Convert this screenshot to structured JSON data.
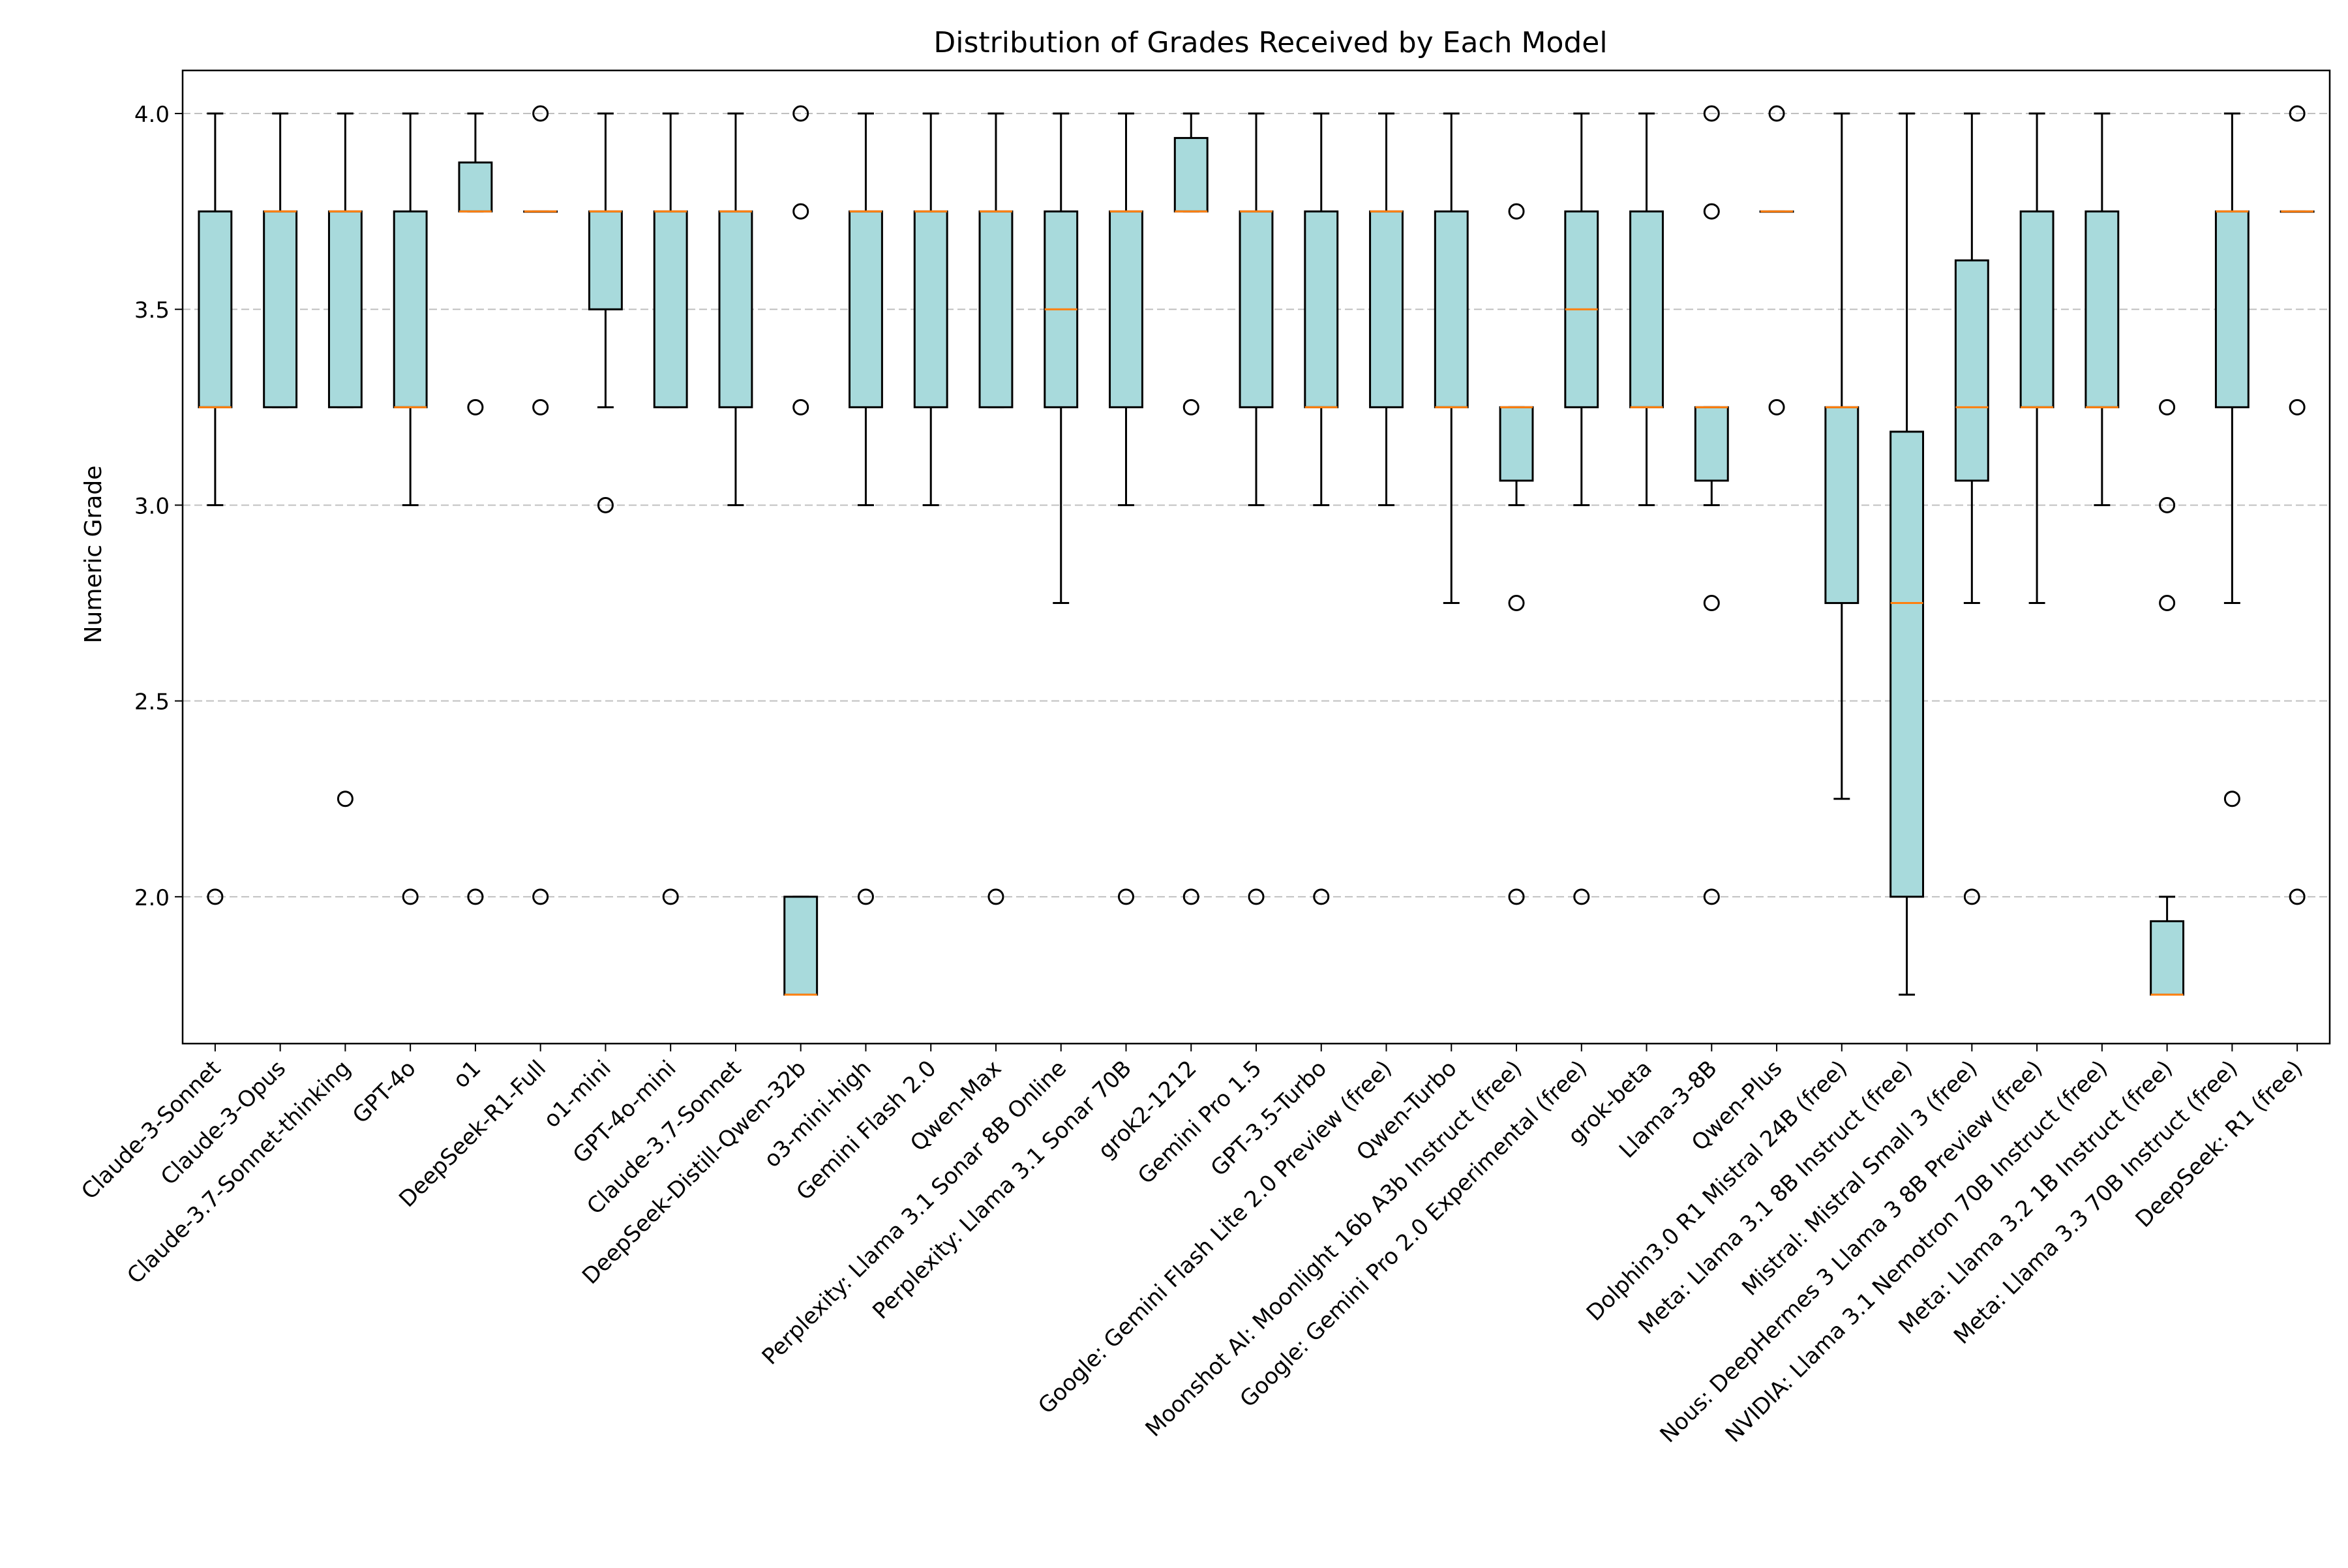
{
  "chart_data": {
    "type": "box",
    "title": "Distribution of Grades Received by Each Model",
    "xlabel": "",
    "ylabel": "Numeric Grade",
    "ylim": [
      1.625,
      4.11
    ],
    "yticks": [
      2.0,
      2.5,
      3.0,
      3.5,
      4.0
    ],
    "ytick_labels": [
      "2.0",
      "2.5",
      "3.0",
      "3.5",
      "4.0"
    ],
    "grid": "y-dashed",
    "colors": {
      "box_fill": "#a8dadc",
      "median": "#ff7f0e",
      "grid": "#c0c0c0",
      "edge": "#000000"
    },
    "categories": [
      "Claude-3-Sonnet",
      "Claude-3-Opus",
      "Claude-3.7-Sonnet-thinking",
      "GPT-4o",
      "o1",
      "DeepSeek-R1-Full",
      "o1-mini",
      "GPT-4o-mini",
      "Claude-3.7-Sonnet",
      "DeepSeek-Distill-Qwen-32b",
      "o3-mini-high",
      "Gemini Flash 2.0",
      "Qwen-Max",
      "Perplexity: Llama 3.1 Sonar 8B Online",
      "Perplexity: Llama 3.1 Sonar 70B",
      "grok2-1212",
      "Gemini Pro 1.5",
      "GPT-3.5-Turbo",
      "Google: Gemini Flash Lite 2.0 Preview (free)",
      "Qwen-Turbo",
      "Moonshot AI: Moonlight 16b A3b Instruct (free)",
      "Google: Gemini Pro 2.0 Experimental (free)",
      "grok-beta",
      "Llama-3-8B",
      "Qwen-Plus",
      "Dolphin3.0 R1 Mistral 24B (free)",
      "Meta: Llama 3.1 8B Instruct (free)",
      "Mistral: Mistral Small 3 (free)",
      "Nous: DeepHermes 3 Llama 3 8B Preview (free)",
      "NVIDIA: Llama 3.1 Nemotron 70B Instruct (free)",
      "Meta: Llama 3.2 1B Instruct (free)",
      "Meta: Llama 3.3 70B Instruct (free)",
      "DeepSeek: R1 (free)"
    ],
    "boxes": [
      {
        "whislo": 3.0,
        "q1": 3.25,
        "med": 3.25,
        "q3": 3.75,
        "whishi": 4.0,
        "fliers": [
          2.0
        ]
      },
      {
        "whislo": 3.25,
        "q1": 3.25,
        "med": 3.75,
        "q3": 3.75,
        "whishi": 4.0,
        "fliers": []
      },
      {
        "whislo": 3.25,
        "q1": 3.25,
        "med": 3.75,
        "q3": 3.75,
        "whishi": 4.0,
        "fliers": [
          2.25
        ]
      },
      {
        "whislo": 3.0,
        "q1": 3.25,
        "med": 3.25,
        "q3": 3.75,
        "whishi": 4.0,
        "fliers": [
          2.0
        ]
      },
      {
        "whislo": 3.75,
        "q1": 3.75,
        "med": 3.75,
        "q3": 3.875,
        "whishi": 4.0,
        "fliers": [
          3.25,
          2.0
        ]
      },
      {
        "whislo": 3.75,
        "q1": 3.75,
        "med": 3.75,
        "q3": 3.75,
        "whishi": 3.75,
        "fliers": [
          4.0,
          3.25,
          2.0
        ]
      },
      {
        "whislo": 3.25,
        "q1": 3.5,
        "med": 3.75,
        "q3": 3.75,
        "whishi": 4.0,
        "fliers": [
          3.0
        ]
      },
      {
        "whislo": 3.25,
        "q1": 3.25,
        "med": 3.75,
        "q3": 3.75,
        "whishi": 4.0,
        "fliers": [
          2.0
        ]
      },
      {
        "whislo": 3.0,
        "q1": 3.25,
        "med": 3.75,
        "q3": 3.75,
        "whishi": 4.0,
        "fliers": []
      },
      {
        "whislo": 1.75,
        "q1": 1.75,
        "med": 1.75,
        "q3": 2.0,
        "whishi": 2.0,
        "fliers": [
          4.0,
          3.75,
          3.25
        ]
      },
      {
        "whislo": 3.0,
        "q1": 3.25,
        "med": 3.75,
        "q3": 3.75,
        "whishi": 4.0,
        "fliers": [
          2.0
        ]
      },
      {
        "whislo": 3.0,
        "q1": 3.25,
        "med": 3.75,
        "q3": 3.75,
        "whishi": 4.0,
        "fliers": []
      },
      {
        "whislo": 3.25,
        "q1": 3.25,
        "med": 3.75,
        "q3": 3.75,
        "whishi": 4.0,
        "fliers": [
          2.0
        ]
      },
      {
        "whislo": 2.75,
        "q1": 3.25,
        "med": 3.5,
        "q3": 3.75,
        "whishi": 4.0,
        "fliers": []
      },
      {
        "whislo": 3.0,
        "q1": 3.25,
        "med": 3.75,
        "q3": 3.75,
        "whishi": 4.0,
        "fliers": [
          2.0
        ]
      },
      {
        "whislo": 3.75,
        "q1": 3.75,
        "med": 3.75,
        "q3": 3.9375,
        "whishi": 4.0,
        "fliers": [
          3.25,
          2.0
        ]
      },
      {
        "whislo": 3.0,
        "q1": 3.25,
        "med": 3.75,
        "q3": 3.75,
        "whishi": 4.0,
        "fliers": [
          2.0
        ]
      },
      {
        "whislo": 3.0,
        "q1": 3.25,
        "med": 3.25,
        "q3": 3.75,
        "whishi": 4.0,
        "fliers": [
          2.0
        ]
      },
      {
        "whislo": 3.0,
        "q1": 3.25,
        "med": 3.75,
        "q3": 3.75,
        "whishi": 4.0,
        "fliers": []
      },
      {
        "whislo": 2.75,
        "q1": 3.25,
        "med": 3.25,
        "q3": 3.75,
        "whishi": 4.0,
        "fliers": []
      },
      {
        "whislo": 3.0,
        "q1": 3.0625,
        "med": 3.25,
        "q3": 3.25,
        "whishi": 3.25,
        "fliers": [
          3.75,
          2.75,
          2.0
        ]
      },
      {
        "whislo": 3.0,
        "q1": 3.25,
        "med": 3.5,
        "q3": 3.75,
        "whishi": 4.0,
        "fliers": [
          2.0
        ]
      },
      {
        "whislo": 3.0,
        "q1": 3.25,
        "med": 3.25,
        "q3": 3.75,
        "whishi": 4.0,
        "fliers": []
      },
      {
        "whislo": 3.0,
        "q1": 3.0625,
        "med": 3.25,
        "q3": 3.25,
        "whishi": 3.25,
        "fliers": [
          4.0,
          3.75,
          2.75,
          2.0
        ]
      },
      {
        "whislo": 3.75,
        "q1": 3.75,
        "med": 3.75,
        "q3": 3.75,
        "whishi": 3.75,
        "fliers": [
          4.0,
          3.25
        ]
      },
      {
        "whislo": 2.25,
        "q1": 2.75,
        "med": 3.25,
        "q3": 3.25,
        "whishi": 4.0,
        "fliers": []
      },
      {
        "whislo": 1.75,
        "q1": 2.0,
        "med": 2.75,
        "q3": 3.1875,
        "whishi": 4.0,
        "fliers": []
      },
      {
        "whislo": 2.75,
        "q1": 3.0625,
        "med": 3.25,
        "q3": 3.625,
        "whishi": 4.0,
        "fliers": [
          2.0
        ]
      },
      {
        "whislo": 2.75,
        "q1": 3.25,
        "med": 3.25,
        "q3": 3.75,
        "whishi": 4.0,
        "fliers": []
      },
      {
        "whislo": 3.0,
        "q1": 3.25,
        "med": 3.25,
        "q3": 3.75,
        "whishi": 4.0,
        "fliers": []
      },
      {
        "whislo": 1.75,
        "q1": 1.75,
        "med": 1.75,
        "q3": 1.9375,
        "whishi": 2.0,
        "fliers": [
          3.25,
          3.0,
          2.75
        ]
      },
      {
        "whislo": 2.75,
        "q1": 3.25,
        "med": 3.75,
        "q3": 3.75,
        "whishi": 4.0,
        "fliers": [
          2.25
        ]
      },
      {
        "whislo": 3.75,
        "q1": 3.75,
        "med": 3.75,
        "q3": 3.75,
        "whishi": 3.75,
        "fliers": [
          4.0,
          3.25,
          2.0
        ]
      }
    ]
  }
}
